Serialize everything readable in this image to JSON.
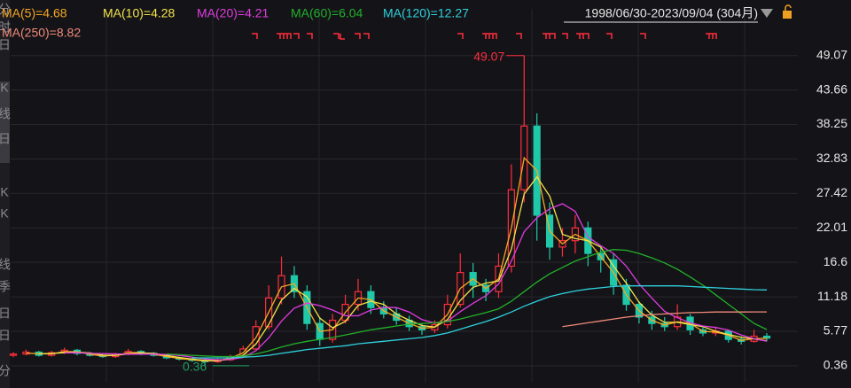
{
  "chart_data": {
    "type": "candlestick",
    "date_range": "1998/06/30-2023/09/04 (304月)",
    "sidebar": [
      "分",
      "时",
      "日",
      "K",
      "线",
      "日",
      "K",
      "K",
      "线",
      "季",
      "日",
      "日",
      "分"
    ],
    "ylim": [
      -2.3,
      56.4
    ],
    "yticks": [
      0.36,
      5.77,
      11.18,
      16.6,
      22.01,
      27.42,
      32.83,
      38.25,
      43.66,
      49.07
    ],
    "grid": true,
    "up_color": "#ff2d3c",
    "down_color": "#1fc8a8",
    "max_label": 49.07,
    "max_label_color": "#ff2d3c",
    "min_label": 0.36,
    "min_label_color": "#1fa060",
    "open": [
      2.0,
      2.2,
      2.5,
      2.0,
      2.4,
      2.8,
      2.3,
      2.0,
      1.8,
      2.2,
      2.6,
      2.3,
      2.0,
      1.6,
      1.4,
      1.2,
      1.0,
      1.3,
      1.8,
      3.0,
      6.5,
      11,
      14.5,
      12,
      7,
      4.5,
      7.5,
      10,
      12,
      9.5,
      8.5,
      7.5,
      6.5,
      6,
      6.8,
      10,
      15,
      13,
      12,
      16,
      28,
      38,
      24,
      19,
      20,
      22,
      18,
      17,
      13,
      10,
      8,
      7,
      6.5,
      8,
      6,
      5.5,
      5.8,
      4.5,
      4.2,
      5.0
    ],
    "close": [
      2.2,
      2.5,
      2.0,
      2.4,
      2.8,
      2.3,
      2.0,
      1.8,
      2.2,
      2.6,
      2.3,
      2.0,
      1.6,
      1.4,
      1.2,
      1.0,
      1.3,
      1.8,
      3.0,
      6.5,
      11,
      14.5,
      12,
      7,
      4.5,
      7.5,
      10,
      12,
      9.5,
      8.5,
      7.5,
      6.5,
      6,
      6.8,
      10,
      15,
      13,
      12,
      16,
      28,
      38,
      24,
      19,
      20,
      22,
      18,
      17,
      13,
      10,
      8,
      7,
      6.5,
      8,
      6,
      5.5,
      5.8,
      4.5,
      4.2,
      5.0,
      4.7
    ],
    "low": [
      1.7,
      2.0,
      1.8,
      1.8,
      2.2,
      2.0,
      1.8,
      1.6,
      1.6,
      2.0,
      2.0,
      1.8,
      1.4,
      1.2,
      1.0,
      0.36,
      0.8,
      1.1,
      1.6,
      2.8,
      6,
      10,
      11,
      6,
      3.5,
      4,
      7,
      9,
      8.5,
      7.8,
      6.8,
      5.8,
      5.2,
      5.5,
      6.2,
      9.5,
      11,
      10.5,
      11,
      15,
      26,
      20,
      17,
      17.5,
      18,
      16,
      15,
      11.5,
      9,
      7,
      6,
      5.8,
      6,
      5.2,
      5,
      5,
      4,
      3.7,
      4,
      4.2
    ],
    "high": [
      2.5,
      2.9,
      2.7,
      2.7,
      3.2,
      3.0,
      2.5,
      2.2,
      2.4,
      3.0,
      2.8,
      2.5,
      2.2,
      1.8,
      1.6,
      1.4,
      1.5,
      2.1,
      3.5,
      7.5,
      13,
      17.5,
      16,
      13,
      8,
      8.5,
      11.5,
      14,
      13,
      10.5,
      9.5,
      8.2,
      7,
      7.5,
      11.5,
      18,
      16.5,
      14,
      18,
      32,
      49.07,
      40,
      26,
      22,
      24,
      23,
      19,
      18,
      14,
      10.5,
      9,
      8,
      10,
      8.5,
      6.5,
      6.5,
      6,
      5,
      6,
      5.5
    ],
    "series": [
      {
        "name": "MA(5)=4.68",
        "color": "#f5a623",
        "values": [
          null,
          2.35,
          2.25,
          2.2,
          2.6,
          2.55,
          2.15,
          1.9,
          2.0,
          2.4,
          2.45,
          2.15,
          1.8,
          1.5,
          1.3,
          1.1,
          1.15,
          1.55,
          2.4,
          4.75,
          8.75,
          12.75,
          13.25,
          9.5,
          5.75,
          6,
          8.75,
          11,
          10.75,
          9,
          8,
          7,
          6.25,
          6.4,
          8.4,
          12.5,
          14,
          12.5,
          14,
          22,
          33,
          31,
          21.5,
          19.5,
          21,
          20,
          17.5,
          15,
          11.5,
          9,
          7.5,
          6.75,
          7.25,
          7,
          5.75,
          5.65,
          5.15,
          4.35,
          4.6,
          4.68
        ]
      },
      {
        "name": "MA(10)=4.28",
        "color": "#f2e34a",
        "values": [
          null,
          null,
          2.23,
          2.3,
          2.4,
          2.5,
          2.37,
          2.03,
          2.0,
          2.2,
          2.37,
          2.3,
          1.97,
          1.67,
          1.4,
          1.2,
          1.17,
          1.37,
          2.03,
          3.77,
          6.83,
          10.67,
          12.5,
          11.17,
          7.83,
          6.33,
          7.33,
          9.83,
          10.5,
          10,
          8.5,
          7.5,
          6.67,
          6.43,
          7.6,
          10.6,
          12.67,
          13.33,
          13.67,
          18.67,
          27.33,
          30,
          27,
          21,
          20.33,
          20,
          19,
          16,
          13.33,
          10.33,
          8.33,
          7.17,
          7.17,
          6.83,
          6.5,
          5.77,
          5.27,
          4.83,
          4.57,
          4.28
        ]
      },
      {
        "name": "MA(20)=4.21",
        "color": "#e03ce0",
        "values": [
          null,
          null,
          null,
          null,
          2.38,
          2.4,
          2.3,
          2.26,
          2.22,
          2.18,
          2.18,
          2.18,
          2.14,
          1.98,
          1.7,
          1.44,
          1.3,
          1.34,
          1.66,
          2.72,
          4.72,
          7.36,
          9.4,
          10.2,
          9.8,
          9.1,
          8.2,
          8.2,
          9.1,
          9.5,
          9.5,
          8.8,
          7.6,
          7.06,
          7.36,
          8.86,
          10.16,
          11.36,
          13.2,
          16.8,
          21.4,
          23.6,
          25,
          25.8,
          24.6,
          20.6,
          19.2,
          18,
          16,
          13.2,
          11,
          8.9,
          7.9,
          7.1,
          6.6,
          6.36,
          5.96,
          5.2,
          4.6,
          4.21
        ]
      },
      {
        "name": "MA(60)=6.04",
        "color": "#22b02a",
        "values": [
          null,
          null,
          null,
          null,
          null,
          null,
          null,
          null,
          null,
          null,
          null,
          null,
          2.2,
          2.1,
          2.0,
          1.9,
          1.8,
          1.8,
          1.9,
          2.2,
          2.7,
          3.3,
          3.8,
          4.2,
          4.5,
          4.8,
          5.2,
          5.6,
          6.0,
          6.3,
          6.6,
          6.9,
          7.0,
          7.1,
          7.3,
          7.7,
          8.2,
          8.7,
          9.3,
          10.5,
          12,
          13.5,
          14.8,
          15.8,
          16.8,
          17.5,
          18.2,
          18.6,
          18.5,
          18,
          17.3,
          16.5,
          15.5,
          14.3,
          13,
          11.5,
          10,
          8.5,
          7,
          6.04
        ]
      },
      {
        "name": "MA(120)=12.27",
        "color": "#2fd0dc",
        "values": [
          null,
          null,
          null,
          null,
          null,
          null,
          null,
          null,
          null,
          null,
          null,
          null,
          null,
          null,
          1.6,
          1.6,
          1.6,
          1.6,
          1.7,
          1.8,
          2.0,
          2.3,
          2.6,
          2.9,
          3.1,
          3.3,
          3.5,
          3.8,
          4.0,
          4.2,
          4.4,
          4.6,
          4.8,
          5.1,
          5.5,
          6.1,
          6.7,
          7.3,
          8.0,
          8.8,
          9.7,
          10.5,
          11.2,
          11.7,
          12.1,
          12.4,
          12.6,
          12.8,
          12.9,
          12.9,
          12.9,
          12.9,
          12.9,
          12.8,
          12.7,
          12.6,
          12.5,
          12.4,
          12.3,
          12.27
        ]
      },
      {
        "name": "MA(250)=8.82",
        "color": "#f08a7a",
        "values": [
          null,
          null,
          null,
          null,
          null,
          null,
          null,
          null,
          null,
          null,
          null,
          null,
          null,
          null,
          null,
          null,
          null,
          null,
          null,
          null,
          null,
          null,
          null,
          null,
          null,
          null,
          null,
          null,
          null,
          null,
          null,
          null,
          null,
          null,
          null,
          null,
          null,
          null,
          null,
          null,
          null,
          null,
          null,
          6.5,
          6.8,
          7.1,
          7.4,
          7.7,
          8.0,
          8.2,
          8.4,
          8.5,
          8.6,
          8.7,
          8.75,
          8.8,
          8.8,
          8.8,
          8.82,
          8.82
        ]
      }
    ]
  }
}
